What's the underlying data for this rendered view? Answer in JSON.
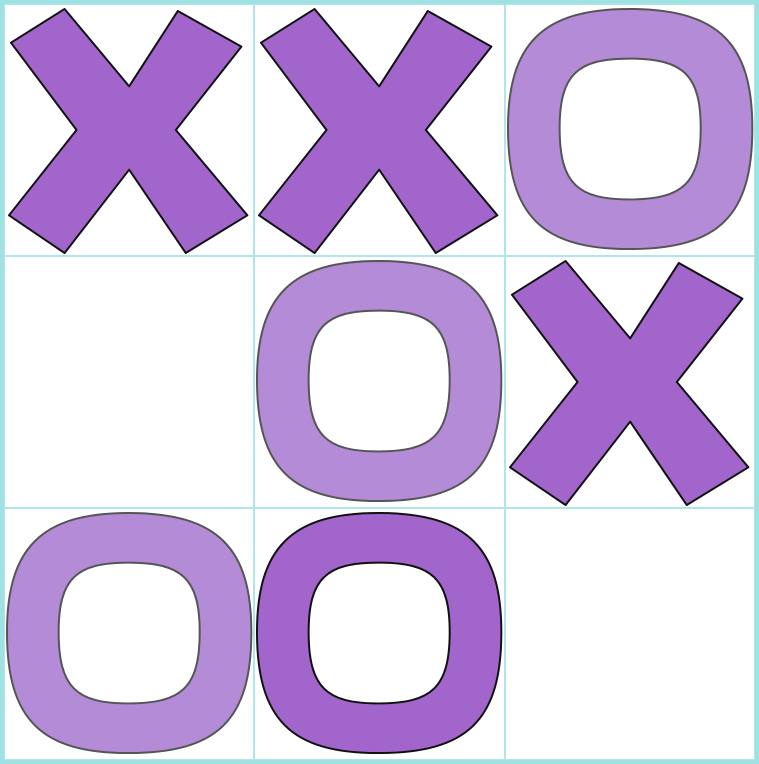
{
  "board": {
    "cells": [
      {
        "mark": "X",
        "shade": "dark"
      },
      {
        "mark": "X",
        "shade": "dark"
      },
      {
        "mark": "O",
        "shade": "light"
      },
      {
        "mark": "",
        "shade": ""
      },
      {
        "mark": "O",
        "shade": "light"
      },
      {
        "mark": "X",
        "shade": "dark"
      },
      {
        "mark": "O",
        "shade": "light"
      },
      {
        "mark": "O",
        "shade": "dark"
      },
      {
        "mark": "",
        "shade": ""
      }
    ]
  },
  "colors": {
    "border": "#9ee2e4",
    "grid": "#aee6ea",
    "x_fill": "#a165cb",
    "o_light": "#b48bd7",
    "o_dark": "#a165cb",
    "stroke_dark": "#111111",
    "stroke_light": "#555555"
  }
}
